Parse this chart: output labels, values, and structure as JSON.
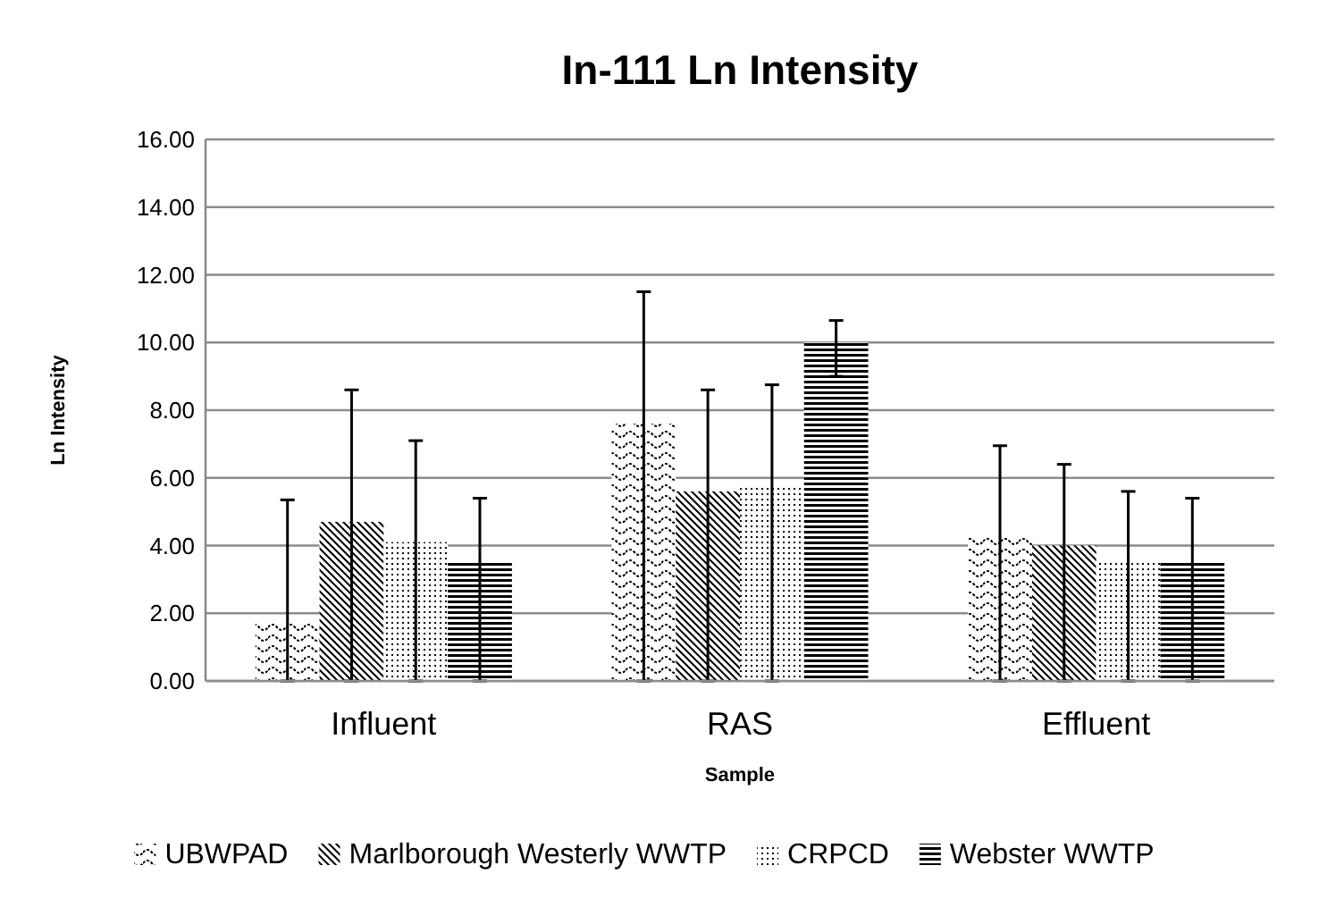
{
  "chart_data": {
    "type": "bar",
    "title": "In-111 Ln Intensity",
    "xlabel": "Sample",
    "ylabel": "Ln Intensity",
    "categories": [
      "Influent",
      "RAS",
      "Effluent"
    ],
    "series": [
      {
        "name": "UBWPAD",
        "color": "#000000",
        "values": [
          1.7,
          7.6,
          4.3
        ],
        "errors": [
          [
            0,
            5.35
          ],
          [
            0,
            11.5
          ],
          [
            0,
            6.95
          ]
        ]
      },
      {
        "name": "Marlborough Westerly WWTP",
        "color": "#000000",
        "values": [
          4.7,
          5.6,
          4.0
        ],
        "errors": [
          [
            0,
            8.6
          ],
          [
            0,
            8.6
          ],
          [
            0,
            6.4
          ]
        ]
      },
      {
        "name": "CRPCD",
        "color": "#000000",
        "values": [
          4.1,
          5.8,
          3.5
        ],
        "errors": [
          [
            0,
            7.1
          ],
          [
            0,
            8.75
          ],
          [
            0,
            5.6
          ]
        ]
      },
      {
        "name": "Webster WWTP",
        "color": "#000000",
        "values": [
          3.5,
          10.0,
          3.5
        ],
        "errors": [
          [
            0,
            5.4
          ],
          [
            9.0,
            10.65
          ],
          [
            0,
            5.4
          ]
        ]
      }
    ],
    "ylim": [
      0,
      16
    ],
    "yticks": [
      {
        "value": 0,
        "label": "0.00"
      },
      {
        "value": 2,
        "label": "2.00"
      },
      {
        "value": 4,
        "label": "4.00"
      },
      {
        "value": 6,
        "label": "6.00"
      },
      {
        "value": 8,
        "label": "8.00"
      },
      {
        "value": 10,
        "label": "10.00"
      },
      {
        "value": 12,
        "label": "12.00"
      },
      {
        "value": 14,
        "label": "14.00"
      },
      {
        "value": 16,
        "label": "16.00"
      }
    ],
    "grid": "y",
    "legend": "bottom"
  }
}
